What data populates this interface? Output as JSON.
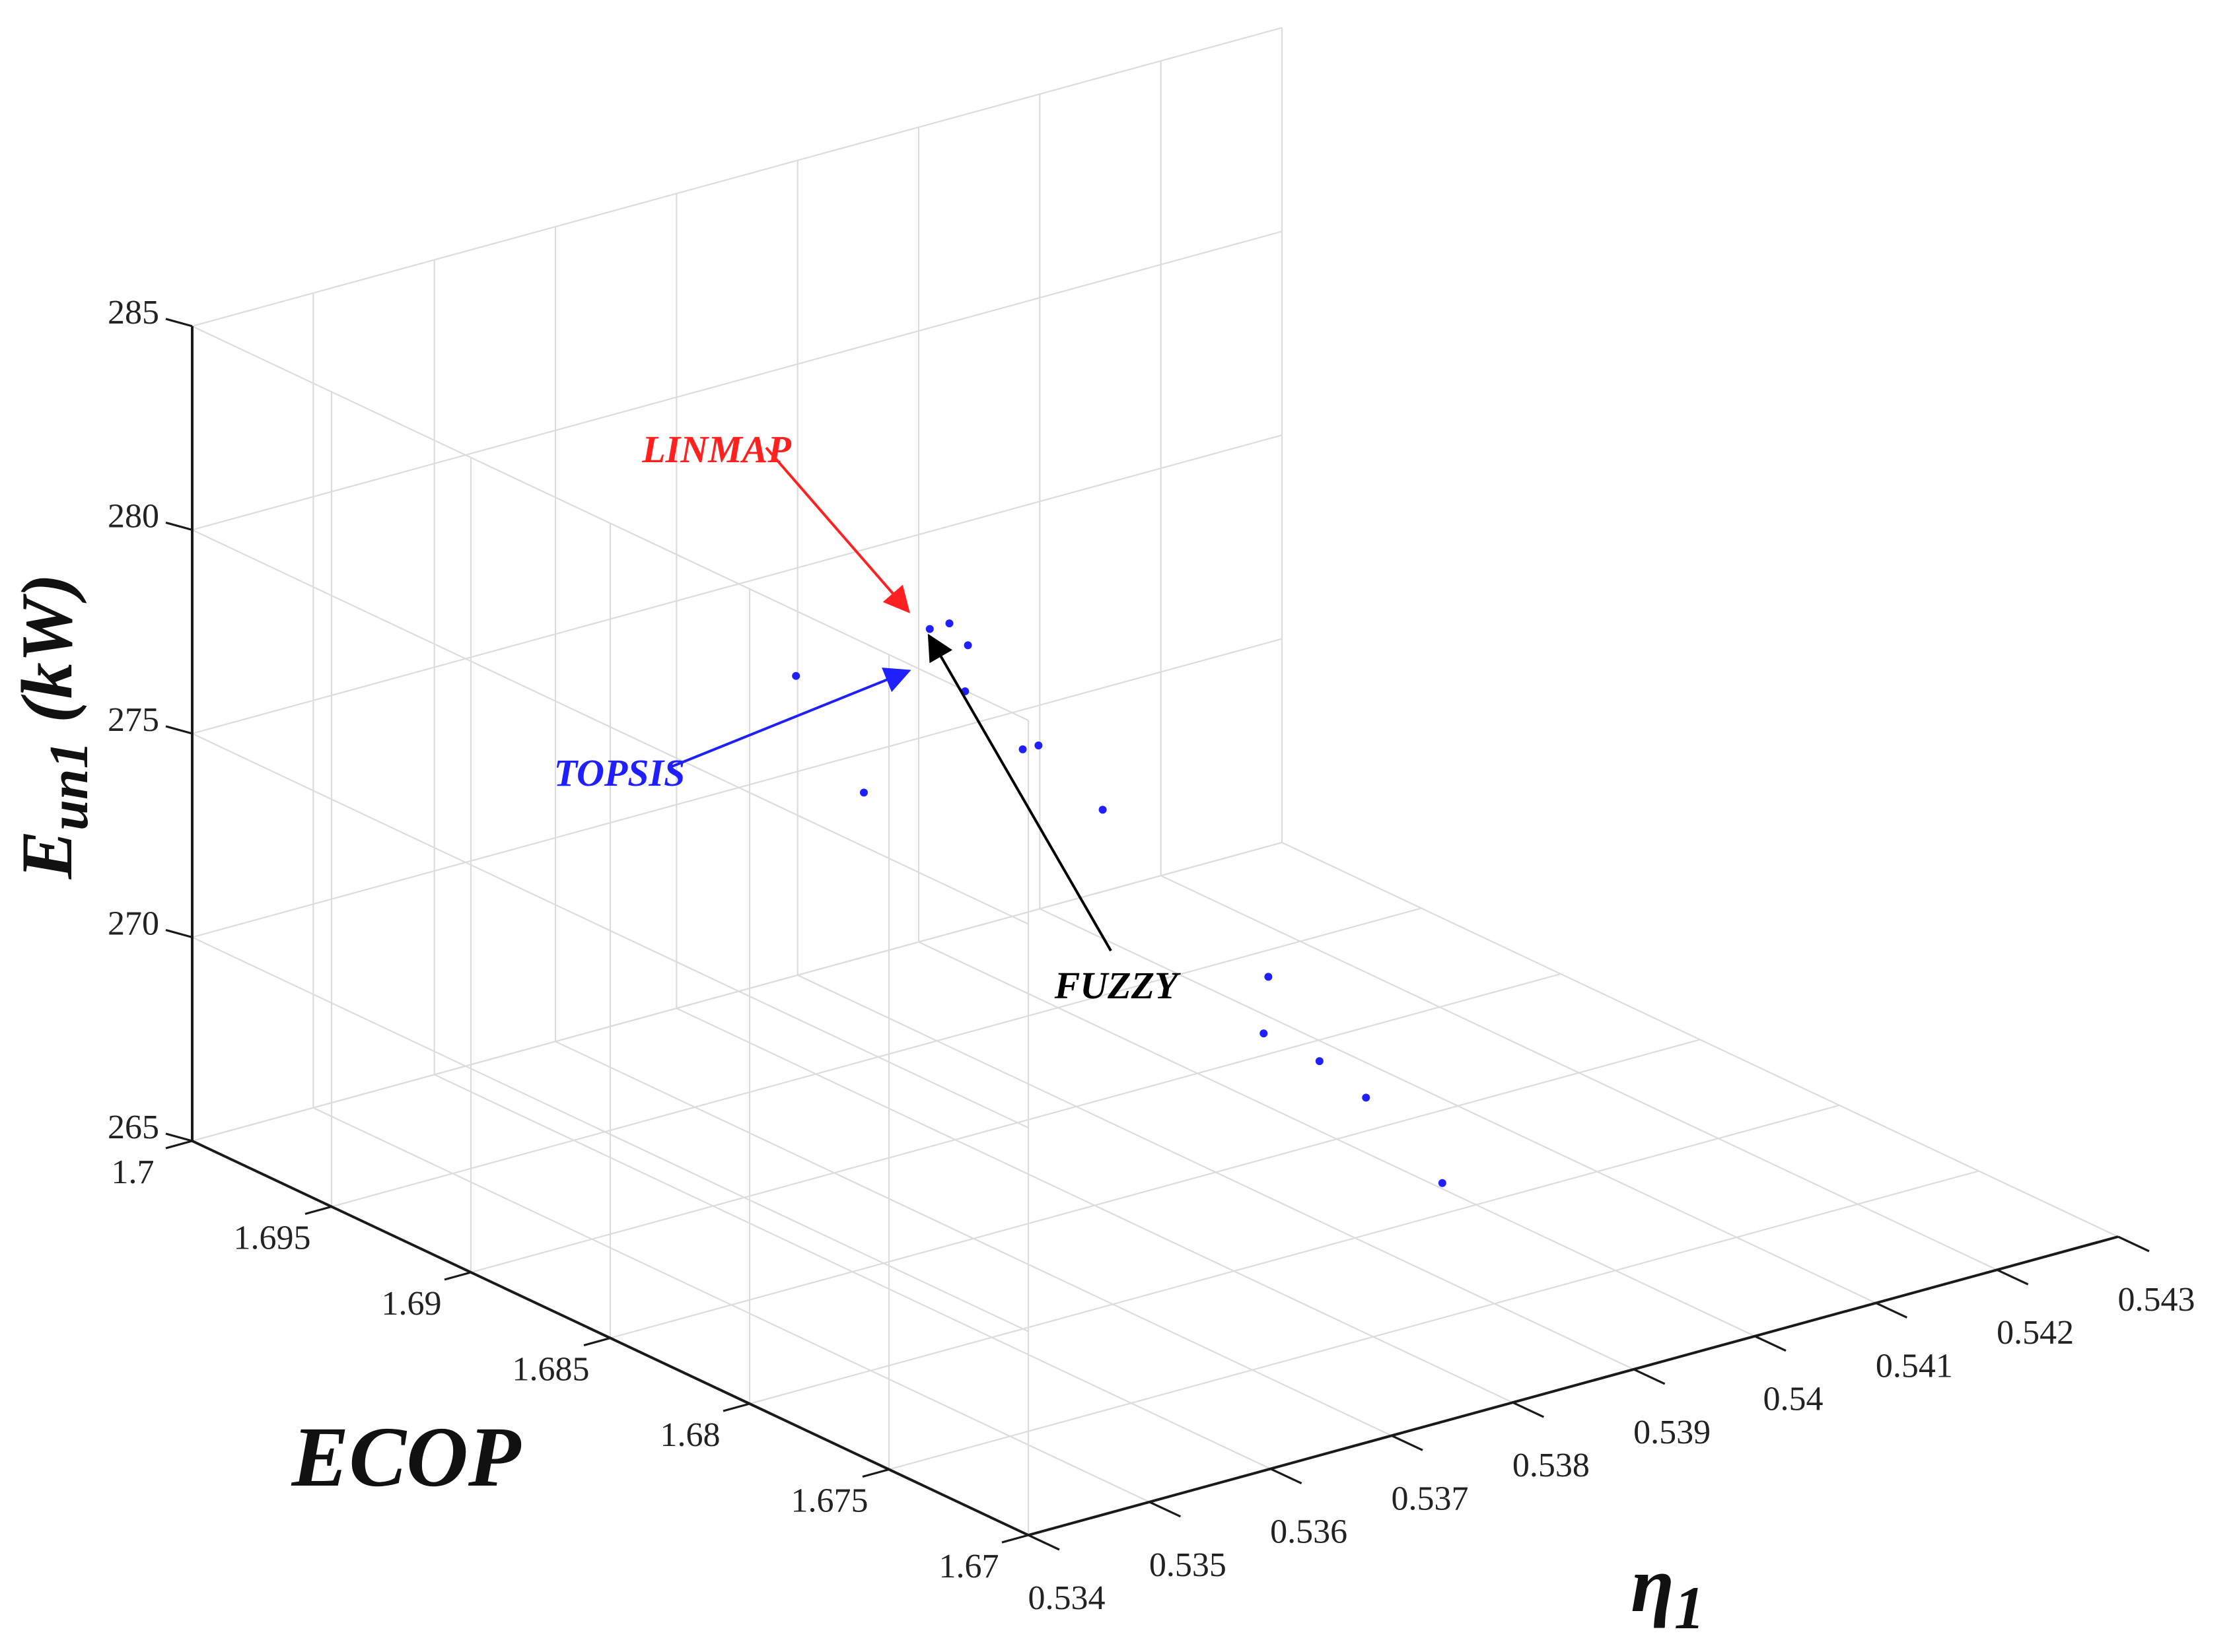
{
  "chart_data": {
    "type": "scatter",
    "projection": "3d",
    "title": "",
    "xlabel": "η",
    "xlabel_subscript": "1",
    "ylabel": "ECOP",
    "zlabel": "E",
    "zlabel_subscript": "un1",
    "zlabel_unit": " (kW)",
    "xlim": [
      0.534,
      0.543
    ],
    "ylim": [
      1.67,
      1.7
    ],
    "zlim": [
      265,
      285
    ],
    "x_ticks": [
      "0.534",
      "0.535",
      "0.536",
      "0.537",
      "0.538",
      "0.539",
      "0.54",
      "0.541",
      "0.542",
      "0.543"
    ],
    "y_ticks": [
      "1.67",
      "1.675",
      "1.68",
      "1.685",
      "1.69",
      "1.695",
      "1.7"
    ],
    "z_ticks": [
      "265",
      "270",
      "275",
      "280",
      "285"
    ],
    "grid": true,
    "series": [
      {
        "color": "#1f1fff",
        "points": [
          {
            "x": 0.5368,
            "y": 1.6905,
            "z": 277.2
          },
          {
            "x": 0.5369,
            "y": 1.6885,
            "z": 274.9
          },
          {
            "x": 0.5371,
            "y": 1.6863,
            "z": 279.6
          },
          {
            "x": 0.5368,
            "y": 1.6857,
            "z": 279.9
          },
          {
            "x": 0.537,
            "y": 1.6852,
            "z": 279.5
          },
          {
            "x": 0.5367,
            "y": 1.684,
            "z": 279.0
          },
          {
            "x": 0.5369,
            "y": 1.6828,
            "z": 277.8
          },
          {
            "x": 0.5368,
            "y": 1.6818,
            "z": 278.3
          },
          {
            "x": 0.5371,
            "y": 1.6808,
            "z": 276.8
          },
          {
            "x": 0.5381,
            "y": 1.6792,
            "z": 272.4
          },
          {
            "x": 0.5379,
            "y": 1.6785,
            "z": 271.4
          },
          {
            "x": 0.5382,
            "y": 1.6778,
            "z": 270.7
          },
          {
            "x": 0.5384,
            "y": 1.677,
            "z": 269.9
          },
          {
            "x": 0.5388,
            "y": 1.676,
            "z": 267.8
          }
        ]
      }
    ],
    "annotations": [
      {
        "label": "LINMAP",
        "color": "#ff2020",
        "target": {
          "x": 0.5368,
          "y": 1.6865,
          "z": 280.1
        }
      },
      {
        "label": "TOPSIS",
        "color": "#1f1fff",
        "target": {
          "x": 0.5368,
          "y": 1.6865,
          "z": 278.6
        }
      },
      {
        "label": "FUZZY",
        "color": "#000000",
        "target": {
          "x": 0.5368,
          "y": 1.6857,
          "z": 279.7
        }
      }
    ]
  }
}
